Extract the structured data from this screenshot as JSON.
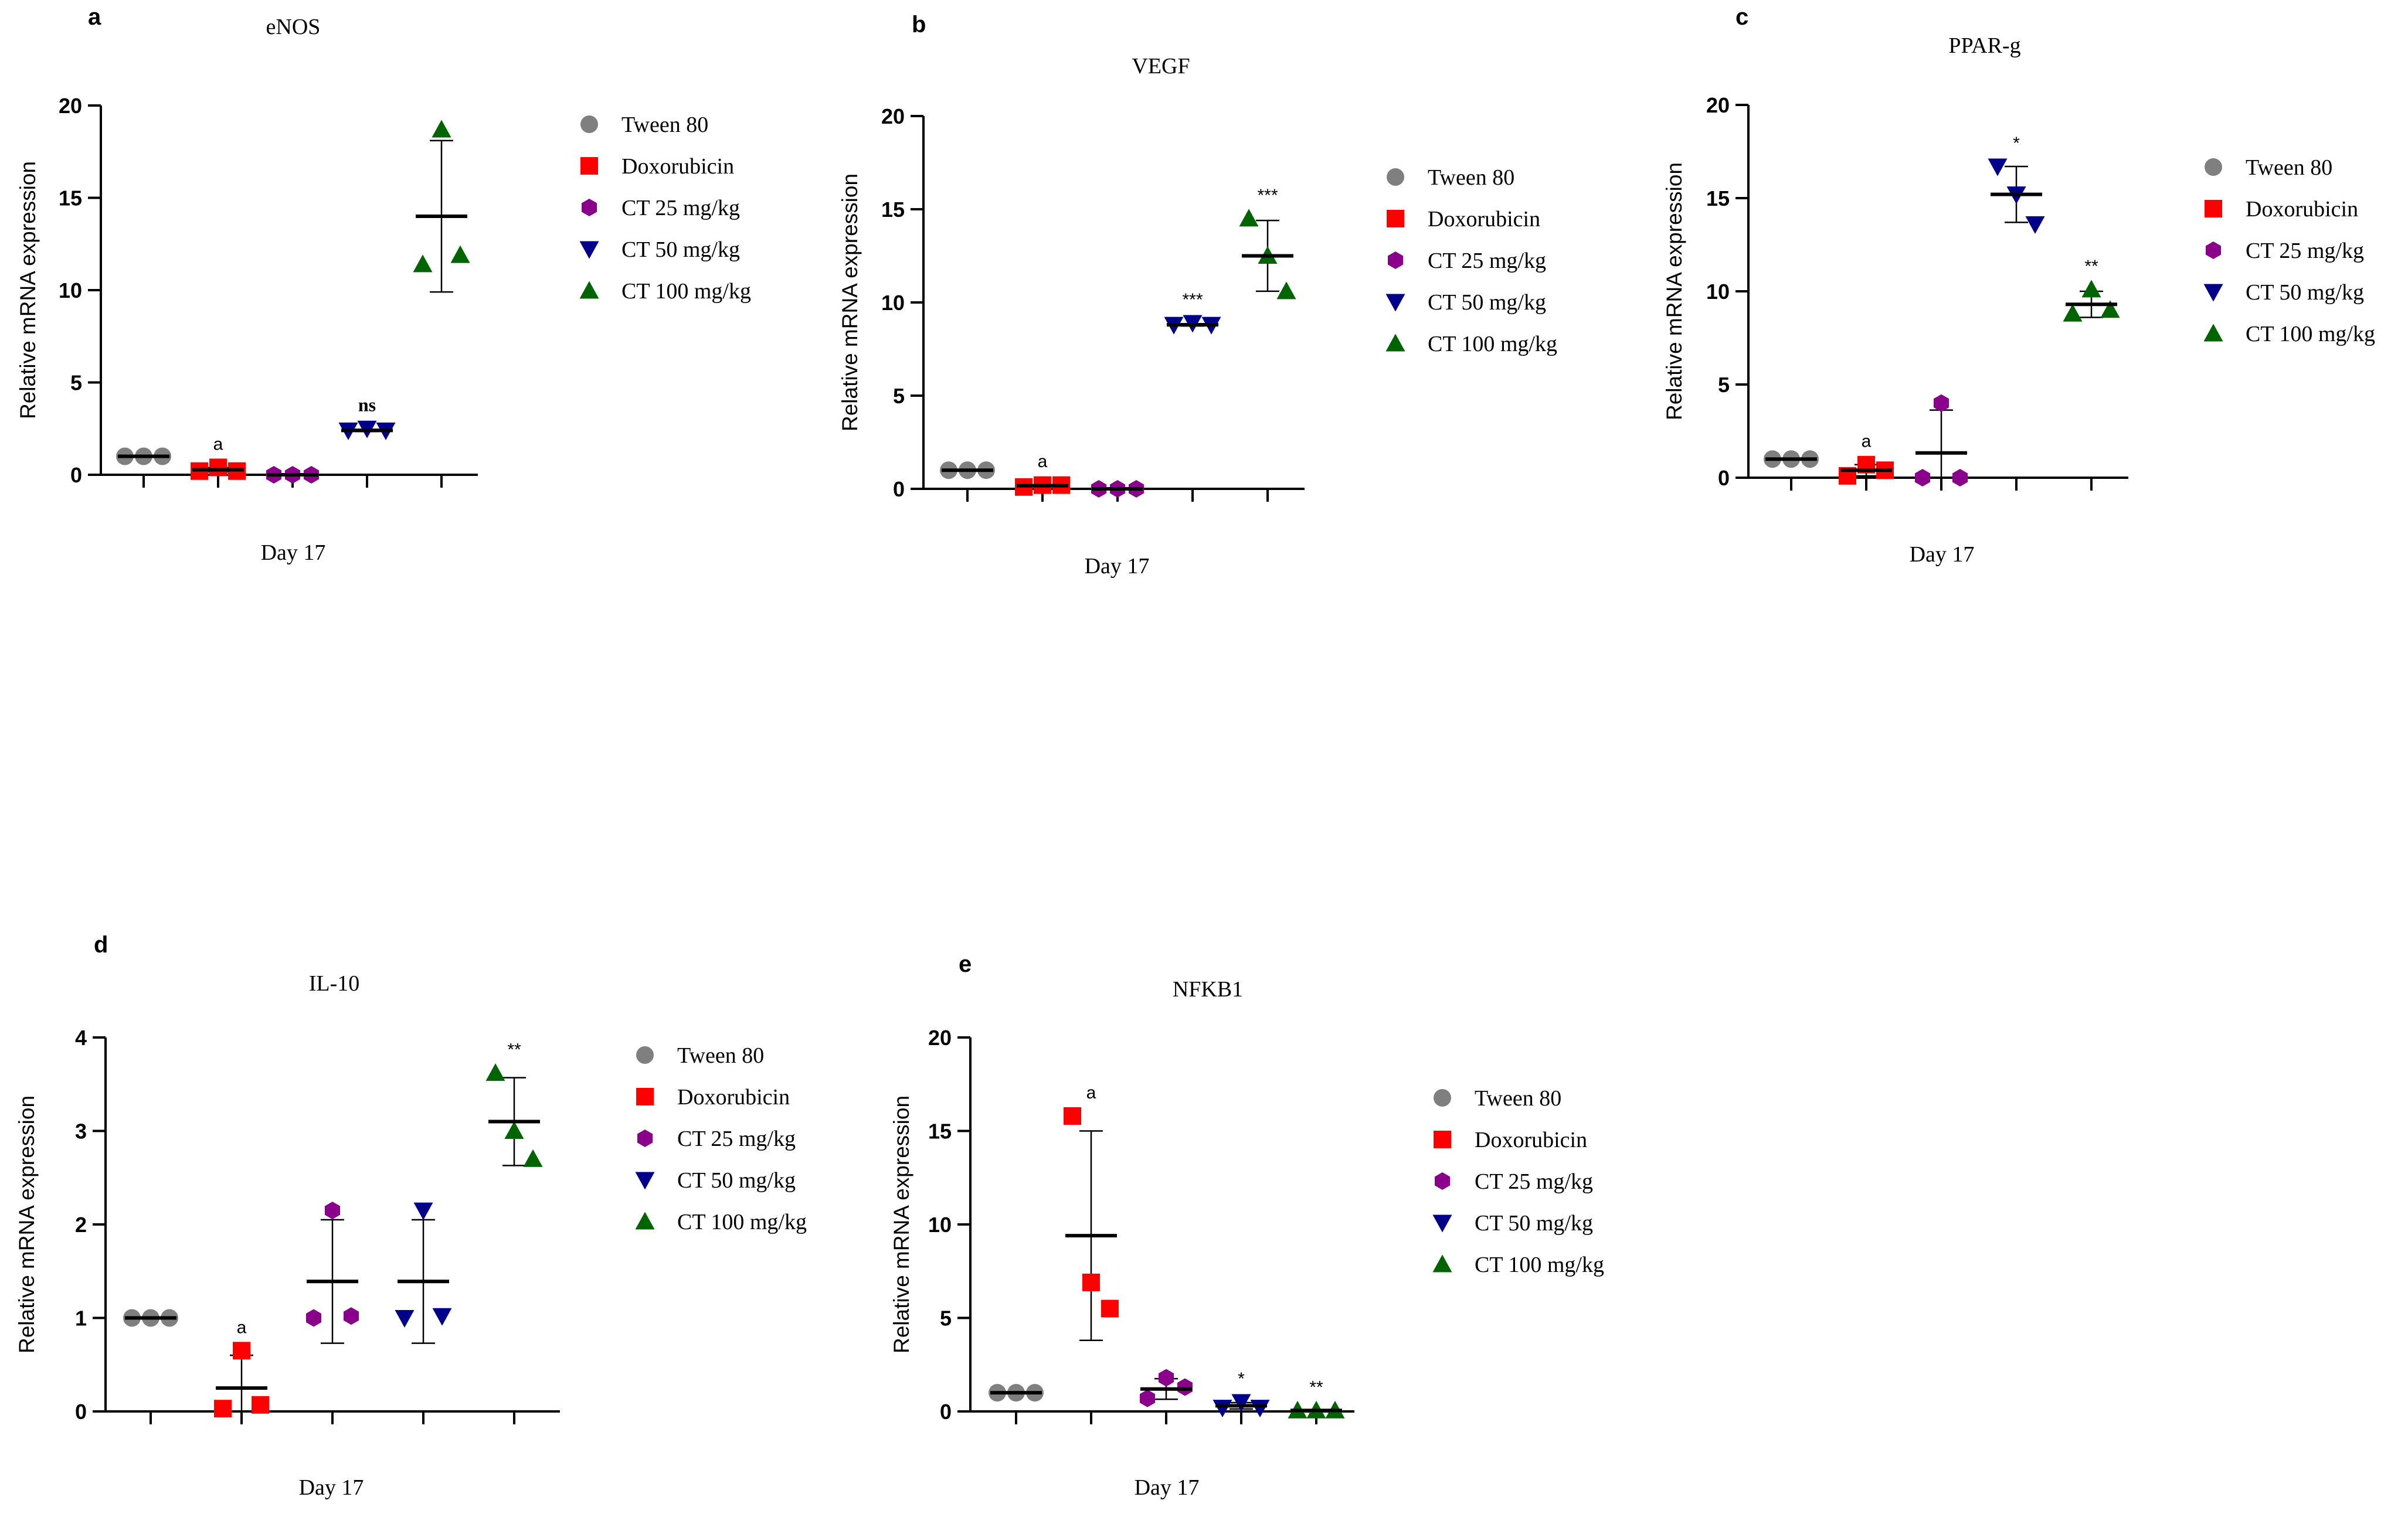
{
  "legend": {
    "entries": [
      {
        "label": "Tween 80",
        "color": "#7f7f7f",
        "marker": "circle"
      },
      {
        "label": "Doxorubicin",
        "color": "#ff0000",
        "marker": "square"
      },
      {
        "label": "CT 25 mg/kg",
        "color": "#8b008b",
        "marker": "hexagon"
      },
      {
        "label": "CT 50 mg/kg",
        "color": "#00008b",
        "marker": "triangle-down"
      },
      {
        "label": "CT 100 mg/kg",
        "color": "#006400",
        "marker": "triangle-up"
      }
    ]
  },
  "chart_data": [
    {
      "panel": "a",
      "type": "scatter",
      "title": "eNOS",
      "xlabel": "Day 17",
      "ylabel": "Relative mRNA expression",
      "ylim": [
        0,
        20
      ],
      "yticks": [
        "0",
        "5",
        "10",
        "15",
        "20"
      ],
      "groups": [
        {
          "name": "Tween 80",
          "points": [
            1.0,
            1.0,
            1.0
          ],
          "mean": 1.0,
          "sd": 0,
          "annotation": ""
        },
        {
          "name": "Doxorubicin",
          "points": [
            0.2,
            0.4,
            0.2
          ],
          "mean": 0.27,
          "sd": 0.12,
          "annotation": "a"
        },
        {
          "name": "CT 25 mg/kg",
          "points": [
            0.0,
            0.0,
            0.0
          ],
          "mean": 0.0,
          "sd": 0,
          "annotation": ""
        },
        {
          "name": "CT 50 mg/kg",
          "points": [
            2.4,
            2.5,
            2.4
          ],
          "mean": 2.4,
          "sd": 0.06,
          "annotation": "ns"
        },
        {
          "name": "CT 100 mg/kg",
          "points": [
            11.4,
            18.7,
            11.9
          ],
          "mean": 14.0,
          "sd": 4.1,
          "annotation": ""
        }
      ]
    },
    {
      "panel": "b",
      "type": "scatter",
      "title": "VEGF",
      "xlabel": "Day 17",
      "ylabel": "Relative mRNA expression",
      "ylim": [
        0,
        20
      ],
      "yticks": [
        "0",
        "5",
        "10",
        "15",
        "20"
      ],
      "groups": [
        {
          "name": "Tween 80",
          "points": [
            1.0,
            1.0,
            1.0
          ],
          "mean": 1.0,
          "sd": 0,
          "annotation": ""
        },
        {
          "name": "Doxorubicin",
          "points": [
            0.1,
            0.2,
            0.2
          ],
          "mean": 0.17,
          "sd": 0.05,
          "annotation": "a"
        },
        {
          "name": "CT 25 mg/kg",
          "points": [
            0.0,
            0.0,
            0.0
          ],
          "mean": 0.0,
          "sd": 0,
          "annotation": ""
        },
        {
          "name": "CT 50 mg/kg",
          "points": [
            8.8,
            8.9,
            8.8
          ],
          "mean": 8.8,
          "sd": 0.06,
          "annotation": "***"
        },
        {
          "name": "CT 100 mg/kg",
          "points": [
            14.5,
            12.5,
            10.6
          ],
          "mean": 12.5,
          "sd": 1.9,
          "annotation": "***"
        }
      ]
    },
    {
      "panel": "c",
      "type": "scatter",
      "title": "PPAR-g",
      "xlabel": "Day 17",
      "ylabel": "Relative mRNA expression",
      "ylim": [
        0,
        20
      ],
      "yticks": [
        "0",
        "5",
        "10",
        "15",
        "20"
      ],
      "groups": [
        {
          "name": "Tween 80",
          "points": [
            1.0,
            1.0,
            1.0
          ],
          "mean": 1.0,
          "sd": 0,
          "annotation": ""
        },
        {
          "name": "Doxorubicin",
          "points": [
            0.1,
            0.7,
            0.4
          ],
          "mean": 0.4,
          "sd": 0.3,
          "annotation": "a"
        },
        {
          "name": "CT 25 mg/kg",
          "points": [
            0.0,
            4.0,
            0.0
          ],
          "mean": 1.33,
          "sd": 2.3,
          "annotation": ""
        },
        {
          "name": "CT 50 mg/kg",
          "points": [
            16.7,
            15.2,
            13.6
          ],
          "mean": 15.2,
          "sd": 1.5,
          "annotation": "*"
        },
        {
          "name": "CT 100 mg/kg",
          "points": [
            8.8,
            10.1,
            9.0
          ],
          "mean": 9.3,
          "sd": 0.7,
          "annotation": "**"
        }
      ]
    },
    {
      "panel": "d",
      "type": "scatter",
      "title": "IL-10",
      "xlabel": "Day 17",
      "ylabel": "Relative mRNA expression",
      "ylim": [
        0,
        4
      ],
      "yticks": [
        "0",
        "1",
        "2",
        "3",
        "4"
      ],
      "groups": [
        {
          "name": "Tween 80",
          "points": [
            1.0,
            1.0,
            1.0
          ],
          "mean": 1.0,
          "sd": 0,
          "annotation": ""
        },
        {
          "name": "Doxorubicin",
          "points": [
            0.03,
            0.65,
            0.07
          ],
          "mean": 0.25,
          "sd": 0.35,
          "annotation": "a"
        },
        {
          "name": "CT 25 mg/kg",
          "points": [
            1.0,
            2.15,
            1.02
          ],
          "mean": 1.39,
          "sd": 0.66,
          "annotation": ""
        },
        {
          "name": "CT 50 mg/kg",
          "points": [
            1.0,
            2.15,
            1.02
          ],
          "mean": 1.39,
          "sd": 0.66,
          "annotation": ""
        },
        {
          "name": "CT 100 mg/kg",
          "points": [
            3.62,
            3.0,
            2.7
          ],
          "mean": 3.1,
          "sd": 0.47,
          "annotation": "**"
        }
      ]
    },
    {
      "panel": "e",
      "type": "scatter",
      "title": "NFKB1",
      "xlabel": "Day 17",
      "ylabel": "Relative mRNA expression",
      "ylim": [
        0,
        20
      ],
      "yticks": [
        "0",
        "5",
        "10",
        "15",
        "20"
      ],
      "groups": [
        {
          "name": "Tween 80",
          "points": [
            1.0,
            1.0,
            1.0
          ],
          "mean": 1.0,
          "sd": 0,
          "annotation": ""
        },
        {
          "name": "Doxorubicin",
          "points": [
            15.8,
            6.9,
            5.5
          ],
          "mean": 9.4,
          "sd": 5.6,
          "annotation": "a"
        },
        {
          "name": "CT 25 mg/kg",
          "points": [
            0.7,
            1.8,
            1.3
          ],
          "mean": 1.2,
          "sd": 0.55,
          "annotation": ""
        },
        {
          "name": "CT 50 mg/kg",
          "points": [
            0.2,
            0.5,
            0.2
          ],
          "mean": 0.3,
          "sd": 0.17,
          "annotation": "*"
        },
        {
          "name": "CT 100 mg/kg",
          "points": [
            0.05,
            0.05,
            0.05
          ],
          "mean": 0.05,
          "sd": 0,
          "annotation": "**"
        }
      ]
    }
  ]
}
